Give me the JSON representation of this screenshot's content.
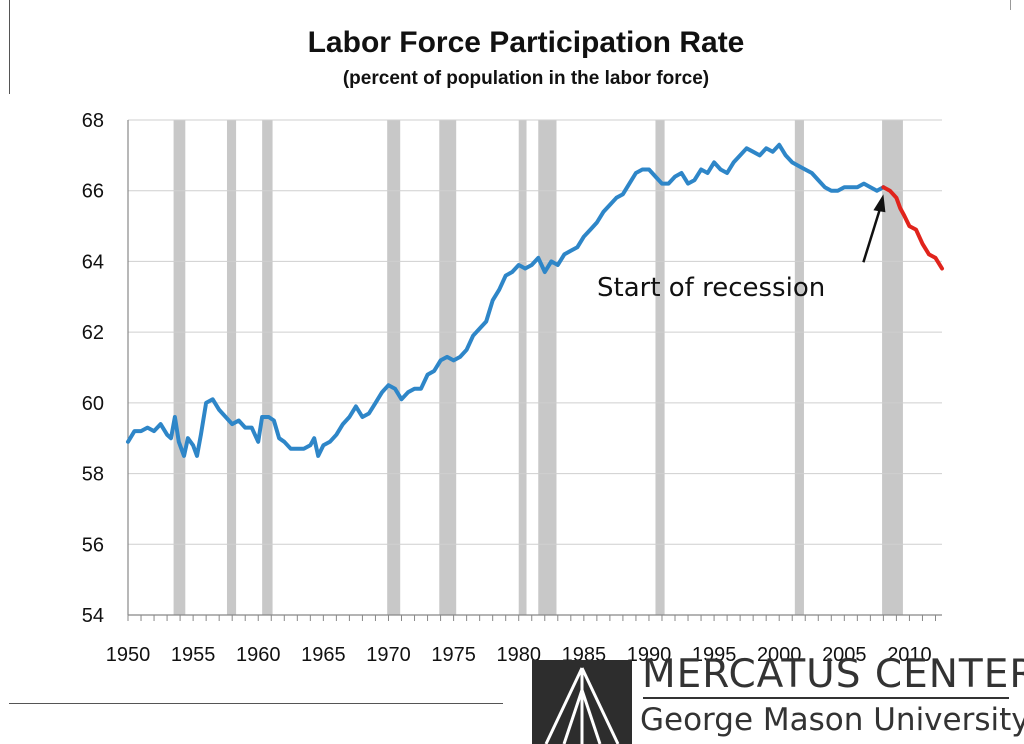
{
  "chart_data": {
    "type": "line",
    "title": "Labor Force Participation Rate",
    "subtitle": "(percent of population in the labor force)",
    "xlabel": "",
    "ylabel": "",
    "xlim": [
      1950,
      2012.5
    ],
    "ylim": [
      54,
      68
    ],
    "x_ticks": [
      1950,
      1955,
      1960,
      1965,
      1970,
      1975,
      1980,
      1985,
      1990,
      1995,
      2000,
      2005,
      2010
    ],
    "y_ticks": [
      54,
      56,
      58,
      60,
      62,
      64,
      66,
      68
    ],
    "grid": "horizontal",
    "legend": "none",
    "series": [
      {
        "color": "#2e86c8",
        "points": [
          [
            1950.0,
            58.9
          ],
          [
            1950.5,
            59.2
          ],
          [
            1951.0,
            59.2
          ],
          [
            1951.5,
            59.3
          ],
          [
            1952.0,
            59.2
          ],
          [
            1952.5,
            59.4
          ],
          [
            1953.0,
            59.1
          ],
          [
            1953.3,
            59.0
          ],
          [
            1953.6,
            59.6
          ],
          [
            1953.9,
            58.9
          ],
          [
            1954.3,
            58.5
          ],
          [
            1954.6,
            59.0
          ],
          [
            1955.0,
            58.8
          ],
          [
            1955.3,
            58.5
          ],
          [
            1955.6,
            59.1
          ],
          [
            1956.0,
            60.0
          ],
          [
            1956.5,
            60.1
          ],
          [
            1957.0,
            59.8
          ],
          [
            1957.5,
            59.6
          ],
          [
            1958.0,
            59.4
          ],
          [
            1958.5,
            59.5
          ],
          [
            1959.0,
            59.3
          ],
          [
            1959.5,
            59.3
          ],
          [
            1960.0,
            58.9
          ],
          [
            1960.3,
            59.6
          ],
          [
            1960.8,
            59.6
          ],
          [
            1961.2,
            59.5
          ],
          [
            1961.6,
            59.0
          ],
          [
            1962.0,
            58.9
          ],
          [
            1962.5,
            58.7
          ],
          [
            1963.0,
            58.7
          ],
          [
            1963.5,
            58.7
          ],
          [
            1964.0,
            58.8
          ],
          [
            1964.3,
            59.0
          ],
          [
            1964.6,
            58.5
          ],
          [
            1965.0,
            58.8
          ],
          [
            1965.5,
            58.9
          ],
          [
            1966.0,
            59.1
          ],
          [
            1966.5,
            59.4
          ],
          [
            1967.0,
            59.6
          ],
          [
            1967.5,
            59.9
          ],
          [
            1968.0,
            59.6
          ],
          [
            1968.5,
            59.7
          ],
          [
            1969.0,
            60.0
          ],
          [
            1969.5,
            60.3
          ],
          [
            1970.0,
            60.5
          ],
          [
            1970.5,
            60.4
          ],
          [
            1971.0,
            60.1
          ],
          [
            1971.5,
            60.3
          ],
          [
            1972.0,
            60.4
          ],
          [
            1972.5,
            60.4
          ],
          [
            1973.0,
            60.8
          ],
          [
            1973.5,
            60.9
          ],
          [
            1974.0,
            61.2
          ],
          [
            1974.5,
            61.3
          ],
          [
            1975.0,
            61.2
          ],
          [
            1975.5,
            61.3
          ],
          [
            1976.0,
            61.5
          ],
          [
            1976.5,
            61.9
          ],
          [
            1977.0,
            62.1
          ],
          [
            1977.5,
            62.3
          ],
          [
            1978.0,
            62.9
          ],
          [
            1978.5,
            63.2
          ],
          [
            1979.0,
            63.6
          ],
          [
            1979.5,
            63.7
          ],
          [
            1980.0,
            63.9
          ],
          [
            1980.5,
            63.8
          ],
          [
            1981.0,
            63.9
          ],
          [
            1981.5,
            64.1
          ],
          [
            1982.0,
            63.7
          ],
          [
            1982.5,
            64.0
          ],
          [
            1983.0,
            63.9
          ],
          [
            1983.5,
            64.2
          ],
          [
            1984.0,
            64.3
          ],
          [
            1984.5,
            64.4
          ],
          [
            1985.0,
            64.7
          ],
          [
            1985.5,
            64.9
          ],
          [
            1986.0,
            65.1
          ],
          [
            1986.5,
            65.4
          ],
          [
            1987.0,
            65.6
          ],
          [
            1987.5,
            65.8
          ],
          [
            1988.0,
            65.9
          ],
          [
            1988.5,
            66.2
          ],
          [
            1989.0,
            66.5
          ],
          [
            1989.5,
            66.6
          ],
          [
            1990.0,
            66.6
          ],
          [
            1990.5,
            66.4
          ],
          [
            1991.0,
            66.2
          ],
          [
            1991.5,
            66.2
          ],
          [
            1992.0,
            66.4
          ],
          [
            1992.5,
            66.5
          ],
          [
            1993.0,
            66.2
          ],
          [
            1993.5,
            66.3
          ],
          [
            1994.0,
            66.6
          ],
          [
            1994.5,
            66.5
          ],
          [
            1995.0,
            66.8
          ],
          [
            1995.5,
            66.6
          ],
          [
            1996.0,
            66.5
          ],
          [
            1996.5,
            66.8
          ],
          [
            1997.0,
            67.0
          ],
          [
            1997.5,
            67.2
          ],
          [
            1998.0,
            67.1
          ],
          [
            1998.5,
            67.0
          ],
          [
            1999.0,
            67.2
          ],
          [
            1999.5,
            67.1
          ],
          [
            2000.0,
            67.3
          ],
          [
            2000.5,
            67.0
          ],
          [
            2001.0,
            66.8
          ],
          [
            2001.5,
            66.7
          ],
          [
            2002.0,
            66.6
          ],
          [
            2002.5,
            66.5
          ],
          [
            2003.0,
            66.3
          ],
          [
            2003.5,
            66.1
          ],
          [
            2004.0,
            66.0
          ],
          [
            2004.5,
            66.0
          ],
          [
            2005.0,
            66.1
          ],
          [
            2005.5,
            66.1
          ],
          [
            2006.0,
            66.1
          ],
          [
            2006.5,
            66.2
          ],
          [
            2007.0,
            66.1
          ],
          [
            2007.5,
            66.0
          ],
          [
            2008.0,
            66.1
          ]
        ]
      },
      {
        "color": "#e0241c",
        "points": [
          [
            2008.0,
            66.1
          ],
          [
            2008.5,
            66.0
          ],
          [
            2009.0,
            65.8
          ],
          [
            2009.3,
            65.5
          ],
          [
            2009.6,
            65.3
          ],
          [
            2010.0,
            65.0
          ],
          [
            2010.5,
            64.9
          ],
          [
            2011.0,
            64.5
          ],
          [
            2011.5,
            64.2
          ],
          [
            2012.0,
            64.1
          ],
          [
            2012.5,
            63.8
          ]
        ]
      }
    ],
    "recession_shading": [
      [
        1953.5,
        1954.4
      ],
      [
        1957.6,
        1958.3
      ],
      [
        1960.3,
        1961.1
      ],
      [
        1969.9,
        1970.9
      ],
      [
        1973.9,
        1975.2
      ],
      [
        1980.0,
        1980.6
      ],
      [
        1981.5,
        1982.9
      ],
      [
        1990.5,
        1991.2
      ],
      [
        2001.2,
        2001.9
      ],
      [
        2007.9,
        2009.5
      ]
    ],
    "annotation": {
      "text": "Start of recession",
      "target": [
        2008.0,
        65.9
      ]
    },
    "colors": {
      "recession": "#c8c8c8",
      "grid": "#cfcfcf",
      "axis": "#888888"
    }
  },
  "branding": {
    "org_name": "MERCATUS CENTER",
    "org_sub": "George Mason University"
  }
}
